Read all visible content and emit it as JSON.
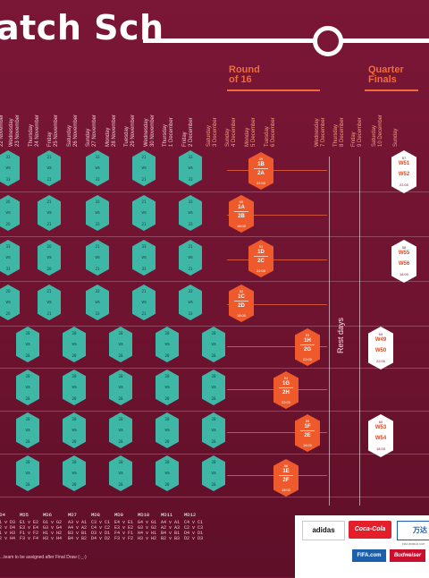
{
  "title": "atch Sch",
  "stages": {
    "round16": [
      "Round",
      "of 16"
    ],
    "quarter": [
      "Quarter",
      "Finals"
    ]
  },
  "dates": [
    [
      "Tuesday",
      "22 November"
    ],
    [
      "Wednesday",
      "23 November"
    ],
    [
      "Thursday",
      "24 November"
    ],
    [
      "Friday",
      "25 November"
    ],
    [
      "Saturday",
      "26 November"
    ],
    [
      "Sunday",
      "27 November"
    ],
    [
      "Monday",
      "28 November"
    ],
    [
      "Tuesday",
      "29 November"
    ],
    [
      "Wednesday",
      "30 November"
    ],
    [
      "Thursday",
      "1 December"
    ],
    [
      "Friday",
      "2 December"
    ],
    [
      "Saturday",
      "3 December"
    ],
    [
      "Sunday",
      "4 December"
    ],
    [
      "Monday",
      "5 December"
    ],
    [
      "Tuesday",
      "6 December"
    ],
    [
      "Wednesday",
      "7 December"
    ],
    [
      "Thursday",
      "8 December"
    ],
    [
      "Friday",
      "9 December"
    ],
    [
      "Saturday",
      "10 December"
    ],
    [
      "Sunday",
      ""
    ]
  ],
  "group_rows": [
    [
      "33",
      "21",
      "33",
      "21",
      "33"
    ],
    [
      "20",
      "21",
      "33",
      "21",
      "33"
    ],
    [
      "33",
      "20",
      "21",
      "33",
      "21"
    ],
    [
      "20",
      "21",
      "33",
      "21",
      "33"
    ],
    [
      "28",
      "28",
      "28",
      "28",
      "28"
    ],
    [
      "28",
      "28",
      "28",
      "28",
      "28"
    ],
    [
      "28",
      "28",
      "28",
      "28",
      "28"
    ],
    [
      "28",
      "28",
      "28",
      "28",
      "28"
    ]
  ],
  "group_tag": "vs",
  "round16": [
    {
      "no": "49",
      "a": "1B",
      "b": "2A",
      "t": "22:00"
    },
    {
      "no": "50",
      "a": "1A",
      "b": "2B",
      "t": "18:00"
    },
    {
      "no": "51",
      "a": "1D",
      "b": "2C",
      "t": "22:00"
    },
    {
      "no": "52",
      "a": "1C",
      "b": "2D",
      "t": "18:00"
    },
    {
      "no": "53",
      "a": "1H",
      "b": "2G",
      "t": "22:00"
    },
    {
      "no": "54",
      "a": "1G",
      "b": "2H",
      "t": "22:00"
    },
    {
      "no": "55",
      "a": "1F",
      "b": "2E",
      "t": "18:00"
    },
    {
      "no": "56",
      "a": "1E",
      "b": "2F",
      "t": "18:00"
    }
  ],
  "quarter": [
    {
      "no": "57",
      "a": "W51",
      "b": "W52",
      "t": "22:00"
    },
    {
      "no": "58",
      "a": "W55",
      "b": "W56",
      "t": "18:00"
    },
    {
      "no": "59",
      "a": "W49",
      "b": "W50",
      "t": "22:00"
    },
    {
      "no": "60",
      "a": "W53",
      "b": "W54",
      "t": "18:00"
    }
  ],
  "rest_label": "Rest days",
  "matchdays": [
    {
      "label": "MD4",
      "lines": [
        "D1 v D3",
        "D2 v D4",
        "H1 v H3",
        "H2 v H4"
      ]
    },
    {
      "label": "MD5",
      "lines": [
        "E1 v E2",
        "E3 v E4",
        "F1 v F2",
        "F3 v F4"
      ]
    },
    {
      "label": "MD6",
      "lines": [
        "G1 v G2",
        "G3 v G4",
        "H1 v H2",
        "H3 v H4"
      ]
    },
    {
      "label": "MD7",
      "lines": [
        "A3 v A1",
        "A4 v A2",
        "B3 v B1",
        "B4 v B2"
      ]
    },
    {
      "label": "MD8",
      "lines": [
        "C3 v C1",
        "C4 v C2",
        "D3 v D1",
        "D4 v D2"
      ]
    },
    {
      "label": "MD9",
      "lines": [
        "E4 v E1",
        "E3 v E2",
        "F4 v F1",
        "F3 v F2"
      ]
    },
    {
      "label": "MD10",
      "lines": [
        "G4 v G1",
        "G3 v G2",
        "H4 v H1",
        "H3 v H2"
      ]
    },
    {
      "label": "MD11",
      "lines": [
        "A4 v A1",
        "A2 v A3",
        "B4 v B1",
        "B2 v B3"
      ]
    },
    {
      "label": "MD12",
      "lines": [
        "C4 v C1",
        "C2 v C3",
        "D4 v D1",
        "D2 v D3"
      ]
    }
  ],
  "note": "...team to be assigned after Final Draw (-_-)",
  "sponsors": {
    "adidas": "adidas",
    "coke": "Coca-Cola",
    "w": "万达",
    "fifa": "FIFA.com",
    "bud": "Budweiser",
    "tiny": "FIFA WORLD CUP"
  },
  "colors": {
    "background": "#7a1636",
    "group_hex": "#3fb7a6",
    "knockout_hex": "#ee5a2b",
    "stage_text": "#f26b3a",
    "white": "#ffffff"
  }
}
